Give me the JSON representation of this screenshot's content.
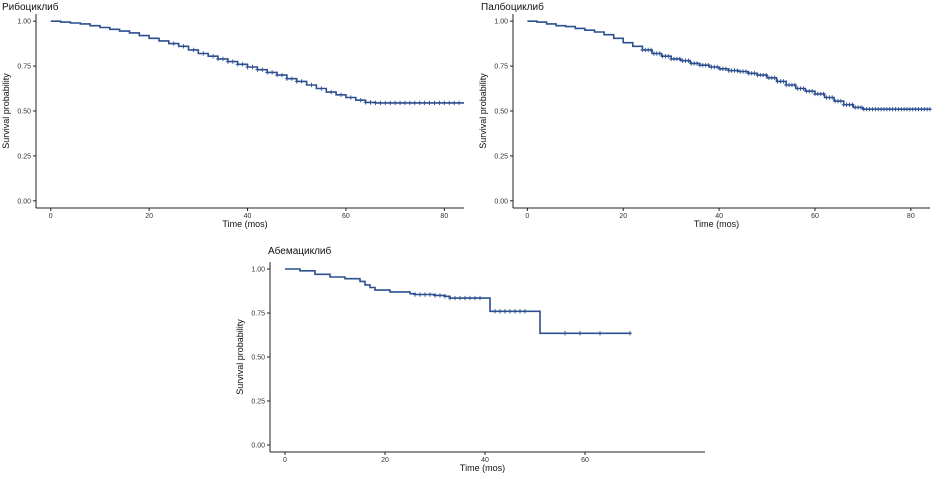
{
  "chart_data": [
    {
      "type": "line",
      "title": "Рибоциклиб",
      "xlabel": "Time (mos)",
      "ylabel": "Survival probability",
      "xlim": [
        -3,
        84
      ],
      "ylim": [
        -0.04,
        1.04
      ],
      "xticks": [
        "0",
        "20",
        "40",
        "60",
        "80"
      ],
      "yticks": [
        "0.00",
        "0.25",
        "0.50",
        "0.75",
        "1.00"
      ],
      "grid": false,
      "color": "#2b4f8f",
      "series": [
        {
          "x": [
            0,
            1,
            2,
            4,
            6,
            8,
            10,
            12,
            14,
            16,
            18,
            20,
            22,
            24,
            26,
            28,
            30,
            32,
            34,
            36,
            38,
            40,
            42,
            44,
            46,
            48,
            50,
            52,
            54,
            56,
            58,
            60,
            62,
            64,
            66,
            70,
            75,
            80,
            84
          ],
          "y": [
            1.0,
            1.0,
            0.995,
            0.99,
            0.985,
            0.975,
            0.965,
            0.955,
            0.945,
            0.935,
            0.92,
            0.905,
            0.89,
            0.875,
            0.86,
            0.84,
            0.82,
            0.805,
            0.79,
            0.775,
            0.76,
            0.745,
            0.73,
            0.715,
            0.7,
            0.68,
            0.665,
            0.645,
            0.625,
            0.605,
            0.59,
            0.575,
            0.56,
            0.548,
            0.545,
            0.545,
            0.545,
            0.545,
            0.545
          ],
          "censored_x": [
            25,
            27,
            29,
            31,
            33,
            34,
            35,
            36,
            37,
            38,
            39,
            40,
            41,
            42,
            43,
            44,
            45,
            46,
            47,
            48,
            49,
            50,
            51,
            53,
            55,
            57,
            59,
            61,
            63,
            64,
            65,
            66,
            67,
            68,
            69,
            70,
            71,
            72,
            73,
            74,
            75,
            76,
            77,
            78,
            79,
            80,
            81,
            82,
            83
          ]
        }
      ]
    },
    {
      "type": "line",
      "title": "Палбоциклиб",
      "xlabel": "Time (mos)",
      "ylabel": "Survival probability",
      "xlim": [
        -3,
        84
      ],
      "ylim": [
        -0.04,
        1.04
      ],
      "xticks": [
        "0",
        "20",
        "40",
        "60",
        "80"
      ],
      "yticks": [
        "0.00",
        "0.25",
        "0.50",
        "0.75",
        "1.00"
      ],
      "grid": false,
      "color": "#2b4f8f",
      "series": [
        {
          "x": [
            0,
            1,
            2,
            4,
            6,
            8,
            10,
            12,
            14,
            16,
            18,
            20,
            22,
            24,
            26,
            28,
            30,
            32,
            34,
            36,
            38,
            40,
            42,
            44,
            46,
            48,
            50,
            52,
            54,
            56,
            58,
            60,
            62,
            64,
            66,
            68,
            70,
            75,
            80,
            84
          ],
          "y": [
            1.0,
            1.0,
            0.995,
            0.985,
            0.975,
            0.97,
            0.96,
            0.95,
            0.94,
            0.925,
            0.905,
            0.88,
            0.86,
            0.84,
            0.82,
            0.805,
            0.79,
            0.78,
            0.765,
            0.755,
            0.745,
            0.735,
            0.725,
            0.72,
            0.71,
            0.7,
            0.685,
            0.665,
            0.645,
            0.625,
            0.61,
            0.595,
            0.575,
            0.555,
            0.535,
            0.52,
            0.51,
            0.51,
            0.51,
            0.51
          ]
        }
      ],
      "censored_x_from": 24,
      "censored_step": 0.6
    },
    {
      "type": "line",
      "title": "Абемациклиб",
      "xlabel": "Time (mos)",
      "ylabel": "Survival probability",
      "xlim": [
        -3,
        84
      ],
      "ylim": [
        -0.04,
        1.04
      ],
      "xticks": [
        "0",
        "20",
        "40",
        "60"
      ],
      "yticks": [
        "0.00",
        "0.25",
        "0.50",
        "0.75",
        "1.00"
      ],
      "grid": false,
      "color": "#2b4f8f",
      "series": [
        {
          "x": [
            0,
            3,
            6,
            9,
            12,
            15,
            16,
            17,
            18,
            21,
            25,
            26,
            30,
            32,
            33,
            40,
            41,
            50,
            51,
            69
          ],
          "y": [
            1.0,
            0.99,
            0.97,
            0.955,
            0.945,
            0.93,
            0.91,
            0.895,
            0.88,
            0.87,
            0.86,
            0.855,
            0.85,
            0.845,
            0.835,
            0.835,
            0.76,
            0.76,
            0.635,
            0.635
          ],
          "censored_x": [
            26,
            27,
            28,
            29,
            30,
            31,
            32,
            33,
            34,
            35,
            36,
            37,
            38,
            39,
            42,
            43,
            44,
            45,
            46,
            47,
            48,
            56,
            59,
            63,
            69
          ]
        }
      ]
    }
  ]
}
